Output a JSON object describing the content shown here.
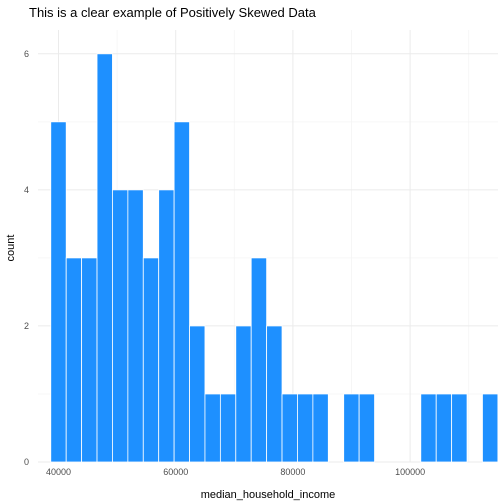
{
  "chart_data": {
    "type": "bar",
    "title": "This is a clear example of Positively Skewed Data",
    "xlabel": "median_household_income",
    "ylabel": "count",
    "bar_color": "#1E90FF",
    "bar_border_color": "#ffffff",
    "background_color": "#ffffff",
    "grid": true,
    "legend": "none",
    "bin_width": 2631,
    "xlim": [
      36500,
      115000
    ],
    "ylim": [
      0,
      6.35
    ],
    "x_ticks": [
      {
        "value": 40000,
        "label": "40000"
      },
      {
        "value": 60000,
        "label": "60000"
      },
      {
        "value": 80000,
        "label": "80000"
      },
      {
        "value": 100000,
        "label": "100000"
      }
    ],
    "y_ticks": [
      {
        "value": 0,
        "label": "0"
      },
      {
        "value": 2,
        "label": "2"
      },
      {
        "value": 4,
        "label": "4"
      },
      {
        "value": 6,
        "label": "6"
      }
    ],
    "bin_start": [
      38681,
      41312,
      43943,
      46574,
      49205,
      51836,
      54467,
      57098,
      59729,
      62360,
      64991,
      67622,
      70253,
      72884,
      75515,
      78146,
      80777,
      83408,
      86039,
      88670,
      91301,
      93932,
      96563,
      99194,
      101825,
      104456,
      107087,
      109718,
      112349
    ],
    "values": [
      5,
      3,
      3,
      6,
      4,
      4,
      3,
      4,
      5,
      2,
      1,
      1,
      2,
      3,
      2,
      1,
      1,
      1,
      0,
      1,
      1,
      0,
      0,
      0,
      1,
      1,
      1,
      0,
      1
    ]
  }
}
